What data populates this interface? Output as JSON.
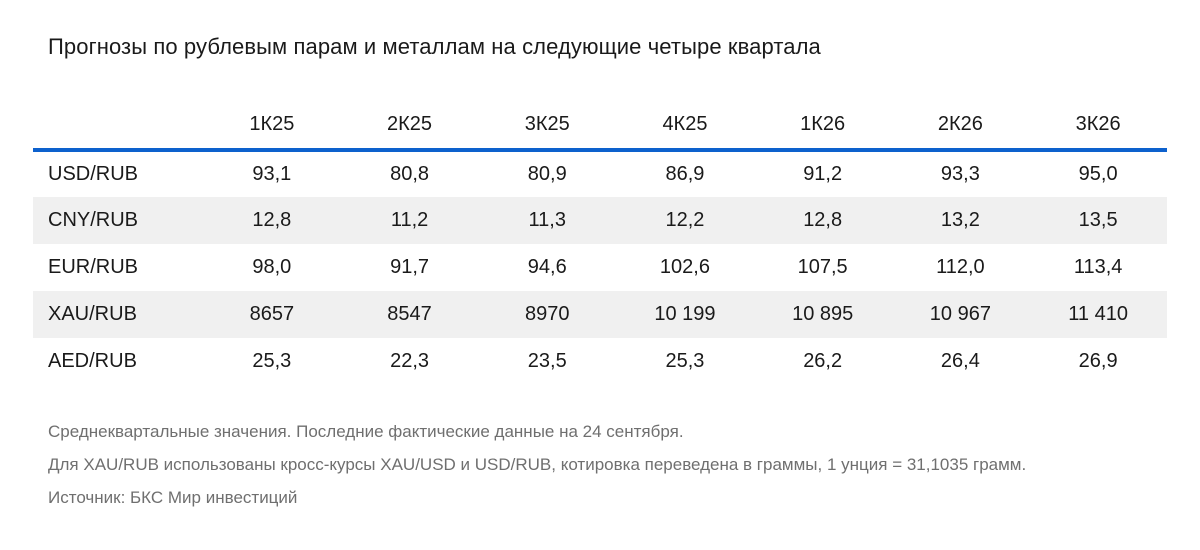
{
  "chart_data": {
    "type": "table",
    "title": "Прогнозы по рублевым парам и металлам на следующие четыре квартала",
    "columns": [
      "1К25",
      "2К25",
      "3К25",
      "4К25",
      "1К26",
      "2К26",
      "3К26"
    ],
    "rows": [
      {
        "label": "USD/RUB",
        "values": [
          "93,1",
          "80,8",
          "80,9",
          "86,9",
          "91,2",
          "93,3",
          "95,0"
        ]
      },
      {
        "label": "CNY/RUB",
        "values": [
          "12,8",
          "11,2",
          "11,3",
          "12,2",
          "12,8",
          "13,2",
          "13,5"
        ]
      },
      {
        "label": "EUR/RUB",
        "values": [
          "98,0",
          "91,7",
          "94,6",
          "102,6",
          "107,5",
          "112,0",
          "113,4"
        ]
      },
      {
        "label": "XAU/RUB",
        "values": [
          "8657",
          "8547",
          "8970",
          "10 199",
          "10 895",
          "10 967",
          "11 410"
        ]
      },
      {
        "label": "AED/RUB",
        "values": [
          "25,3",
          "22,3",
          "23,5",
          "25,3",
          "26,2",
          "26,4",
          "26,9"
        ]
      }
    ],
    "layout": {
      "striped_rows": "even",
      "header_rule": "blue",
      "value_alignment": "center",
      "decimal_separator": ",",
      "thousands_separator": " "
    }
  },
  "footnotes": [
    "Среднеквартальные значения. Последние фактические данные на 24 сентября.",
    "Для XAU/RUB использованы кросс-курсы XAU/USD и USD/RUB, котировка переведена в граммы, 1 унция = 31,1035 грамм.",
    "Источник: БКС Мир инвестиций"
  ],
  "colors": {
    "accent_blue": "#0d61cd",
    "stripe_gray": "#f0f0f0",
    "text": "#1a1a1a",
    "footnote_gray": "#6f6f6f"
  }
}
